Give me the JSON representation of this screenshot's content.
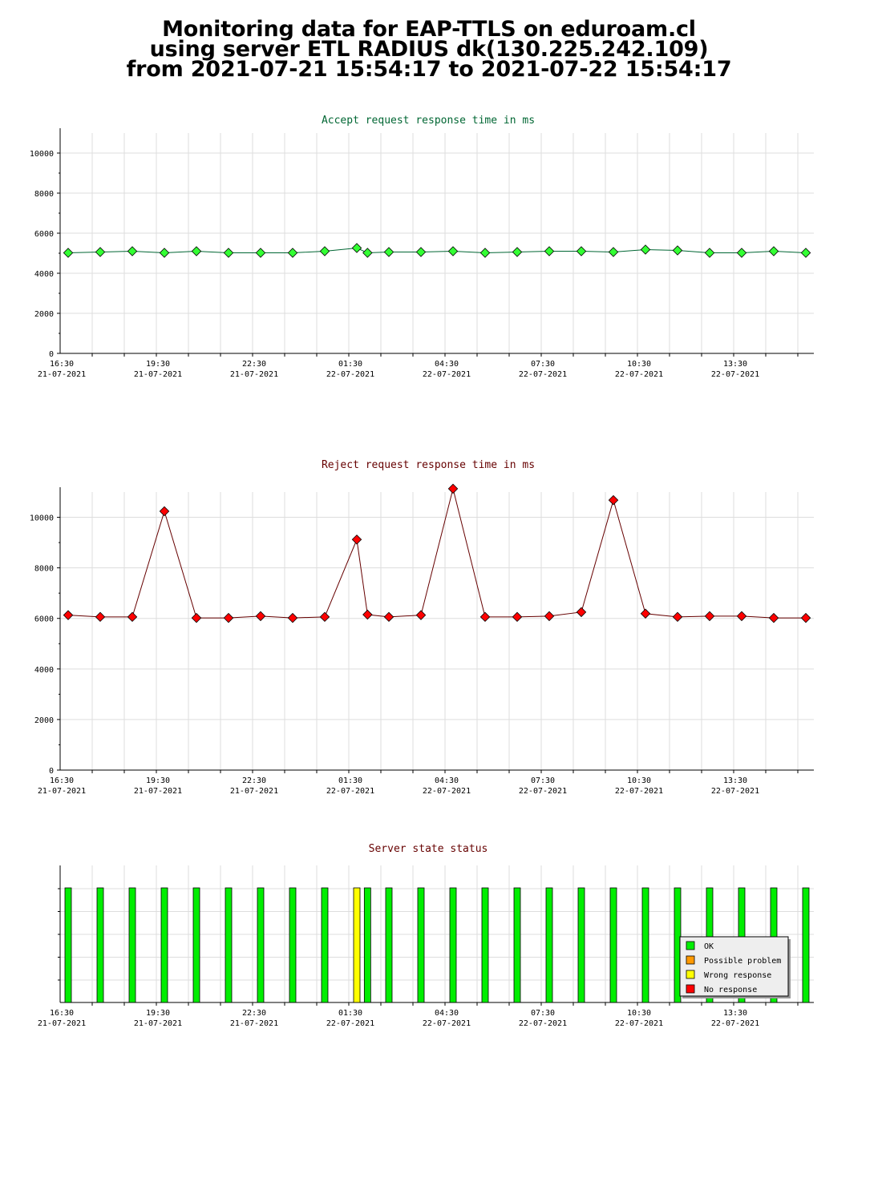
{
  "header": {
    "line1": "Monitoring data for EAP-TTLS on eduroam.cl",
    "line2": "using server ETL RADIUS dk(130.225.242.109)",
    "line3": "from 2021-07-21 15:54:17 to 2021-07-22 15:54:17"
  },
  "colors": {
    "accept_title": "#006633",
    "reject_title": "#660000",
    "status_title": "#660000",
    "accept_line": "#006633",
    "accept_marker": "#33ff33",
    "reject_line": "#660000",
    "reject_marker": "#ff0000",
    "grid": "#dddddd",
    "ok": "#00ee00",
    "possible_problem": "#ff9900",
    "wrong_response": "#ffff00",
    "no_response": "#ff0000"
  },
  "x_axis": {
    "ticks": [
      {
        "time": "16:30",
        "date": "21-07-2021"
      },
      {
        "time": "19:30",
        "date": "21-07-2021"
      },
      {
        "time": "22:30",
        "date": "21-07-2021"
      },
      {
        "time": "01:30",
        "date": "22-07-2021"
      },
      {
        "time": "04:30",
        "date": "22-07-2021"
      },
      {
        "time": "07:30",
        "date": "22-07-2021"
      },
      {
        "time": "10:30",
        "date": "22-07-2021"
      },
      {
        "time": "13:30",
        "date": "22-07-2021"
      }
    ]
  },
  "chart_data": [
    {
      "type": "line",
      "title": "Accept request response time in ms",
      "ylim": [
        0,
        11000
      ],
      "yticks": [
        0,
        2000,
        4000,
        6000,
        8000,
        10000
      ],
      "x": [
        "16:15",
        "17:15",
        "18:15",
        "19:15",
        "20:15",
        "21:15",
        "22:15",
        "23:15",
        "00:15",
        "01:15",
        "01:35",
        "02:15",
        "03:15",
        "04:15",
        "05:15",
        "06:15",
        "07:15",
        "08:15",
        "09:15",
        "10:15",
        "11:15",
        "12:15",
        "13:15",
        "14:15",
        "15:15"
      ],
      "values": [
        5020,
        5060,
        5100,
        5020,
        5100,
        5020,
        5020,
        5020,
        5100,
        5260,
        5020,
        5060,
        5060,
        5100,
        5020,
        5060,
        5100,
        5100,
        5060,
        5180,
        5140,
        5020,
        5020,
        5100,
        5020
      ]
    },
    {
      "type": "line",
      "title": "Reject request response time in ms",
      "ylim": [
        0,
        11000
      ],
      "yticks": [
        0,
        2000,
        4000,
        6000,
        8000,
        10000
      ],
      "x": [
        "16:15",
        "17:15",
        "18:15",
        "19:15",
        "20:15",
        "21:15",
        "22:15",
        "23:15",
        "00:15",
        "01:15",
        "01:35",
        "02:15",
        "03:15",
        "04:15",
        "05:15",
        "06:15",
        "07:15",
        "08:15",
        "09:15",
        "10:15",
        "11:15",
        "12:15",
        "13:15",
        "14:15",
        "15:15"
      ],
      "values": [
        6130,
        6060,
        6060,
        10240,
        6020,
        6020,
        6090,
        6020,
        6060,
        9120,
        6150,
        6060,
        6130,
        11130,
        6060,
        6060,
        6090,
        6250,
        10680,
        6190,
        6060,
        6090,
        6090,
        6020,
        6020
      ]
    },
    {
      "type": "bar",
      "title": "Server state status",
      "x": [
        "16:15",
        "17:15",
        "18:15",
        "19:15",
        "20:15",
        "21:15",
        "22:15",
        "23:15",
        "00:15",
        "01:15",
        "01:35",
        "02:15",
        "03:15",
        "04:15",
        "05:15",
        "06:15",
        "07:15",
        "08:15",
        "09:15",
        "10:15",
        "11:15",
        "12:15",
        "13:15",
        "14:15",
        "15:15"
      ],
      "states": [
        "OK",
        "OK",
        "OK",
        "OK",
        "OK",
        "OK",
        "OK",
        "OK",
        "OK",
        "Wrong response",
        "OK",
        "OK",
        "OK",
        "OK",
        "OK",
        "OK",
        "OK",
        "OK",
        "OK",
        "OK",
        "OK",
        "OK",
        "OK",
        "OK",
        "OK"
      ],
      "legend": [
        "OK",
        "Possible problem",
        "Wrong response",
        "No response"
      ],
      "legend_position": "bottom-right"
    }
  ]
}
